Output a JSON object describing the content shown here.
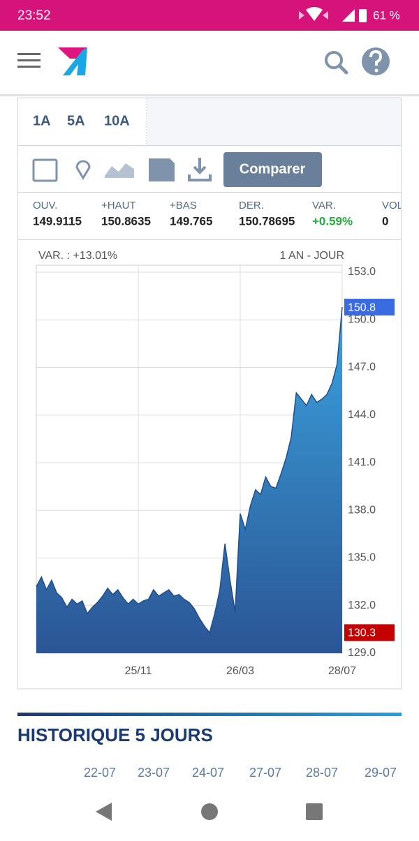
{
  "status_bar": {
    "time": "23:52",
    "battery": "61 %"
  },
  "tabs": [
    "1A",
    "5A",
    "10A"
  ],
  "toolbar": {
    "button": "Comparer"
  },
  "stats": [
    {
      "label": "OUV.",
      "value": "149.9115"
    },
    {
      "label": "+HAUT",
      "value": "150.8635"
    },
    {
      "label": "+BAS",
      "value": "149.765"
    },
    {
      "label": "DER.",
      "value": "150.78695"
    },
    {
      "label": "VAR.",
      "value": "+0.59%"
    },
    {
      "label": "VOL.",
      "value": "0"
    }
  ],
  "chart_data": {
    "type": "area",
    "title": "VAR. : +13.01%",
    "subtitle": "1 AN - JOUR",
    "categories": [
      null,
      null,
      null,
      null,
      null,
      null,
      null,
      null,
      null,
      null,
      null,
      null,
      null,
      null,
      null,
      null,
      null,
      null,
      null,
      null,
      "25/11",
      null,
      null,
      null,
      null,
      null,
      null,
      null,
      null,
      null,
      null,
      null,
      null,
      null,
      null,
      null,
      null,
      null,
      null,
      null,
      "26/03",
      null,
      null,
      null,
      null,
      null,
      null,
      null,
      null,
      null,
      null,
      null,
      null,
      null,
      null,
      null,
      null,
      null,
      null,
      null,
      "28/07"
    ],
    "values": [
      133.2,
      133.8,
      133.0,
      133.6,
      132.8,
      132.5,
      131.9,
      132.4,
      132.1,
      132.3,
      131.5,
      131.9,
      132.2,
      132.6,
      133.1,
      132.7,
      133.0,
      132.5,
      132.1,
      132.4,
      132.1,
      132.3,
      132.4,
      133.0,
      132.6,
      132.8,
      133.0,
      132.6,
      132.7,
      132.4,
      132.2,
      131.8,
      131.2,
      130.7,
      130.3,
      131.5,
      133.0,
      135.9,
      133.6,
      131.6,
      137.8,
      136.8,
      138.3,
      139.3,
      139.0,
      140.1,
      139.5,
      139.4,
      140.3,
      141.3,
      142.6,
      145.4,
      145.0,
      144.6,
      145.3,
      144.8,
      145.0,
      145.3,
      146.0,
      147.2,
      150.8
    ],
    "color": "#1f4e8c",
    "ylim": [
      129,
      153
    ],
    "yticks": [
      {
        "value": 129,
        "label": "129.0"
      },
      {
        "value": 132,
        "label": "132.0"
      },
      {
        "value": 135,
        "label": "135.0"
      },
      {
        "value": 138,
        "label": "138.0"
      },
      {
        "value": 141,
        "label": "141.0"
      },
      {
        "value": 144,
        "label": "144.0"
      },
      {
        "value": 147,
        "label": "147.0"
      },
      {
        "value": 150,
        "label": "150.0"
      },
      {
        "value": 153,
        "label": "153.0"
      }
    ],
    "grid": true,
    "markers": [
      {
        "value": 150.8,
        "label": "150.8",
        "color": "#3b6be0"
      },
      {
        "value": 130.3,
        "label": "130.3",
        "color": "#c40000"
      }
    ]
  },
  "history": {
    "title": "HISTORIQUE 5 JOURS",
    "dates": [
      "22-07",
      "23-07",
      "24-07",
      "27-07",
      "28-07",
      "29-07"
    ]
  }
}
